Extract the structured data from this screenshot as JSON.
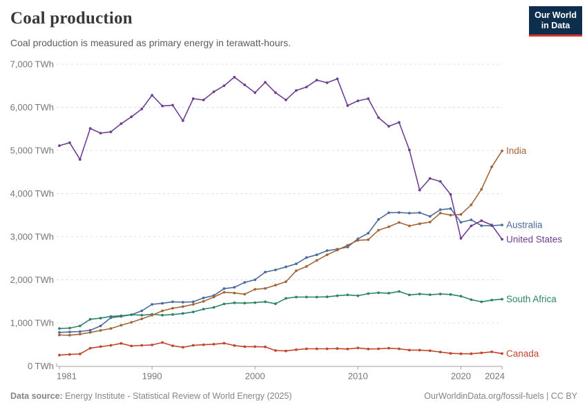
{
  "header": {
    "title": "Coal production",
    "subtitle": "Coal production is measured as primary energy in terawatt-hours.",
    "logo": {
      "line1": "Our World",
      "line2": "in Data",
      "bg_color": "#0e2e4e",
      "accent_color": "#d8352a"
    }
  },
  "chart_data": {
    "type": "line",
    "title": "Coal production",
    "subtitle": "Coal production is measured as primary energy in terawatt-hours.",
    "unit": "TWh",
    "ylim": [
      0,
      7000
    ],
    "ytick_step": 1000,
    "xticks": [
      1981,
      1990,
      2000,
      2010,
      2020,
      2024
    ],
    "grid": "horizontal-dashed",
    "legend_position": "right-end-labels",
    "grid_color": "#dcdcdc",
    "axis_color": "#a0a0a0",
    "tick_label_color": "#757575",
    "x": [
      1981,
      1982,
      1983,
      1984,
      1985,
      1986,
      1987,
      1988,
      1989,
      1990,
      1991,
      1992,
      1993,
      1994,
      1995,
      1996,
      1997,
      1998,
      1999,
      2000,
      2001,
      2002,
      2003,
      2004,
      2005,
      2006,
      2007,
      2008,
      2009,
      2010,
      2011,
      2012,
      2013,
      2014,
      2015,
      2016,
      2017,
      2018,
      2019,
      2020,
      2021,
      2022,
      2023,
      2024
    ],
    "series": [
      {
        "name": "Australia",
        "color": "#4c6a9c",
        "values": [
          780,
          790,
          800,
          830,
          930,
          1120,
          1150,
          1190,
          1280,
          1430,
          1455,
          1490,
          1480,
          1490,
          1580,
          1635,
          1795,
          1825,
          1940,
          2000,
          2180,
          2230,
          2300,
          2370,
          2515,
          2580,
          2675,
          2710,
          2760,
          2950,
          3080,
          3400,
          3555,
          3560,
          3545,
          3555,
          3470,
          3625,
          3650,
          3335,
          3390,
          3255,
          3255,
          3270
        ]
      },
      {
        "name": "South Africa",
        "color": "#2c8465",
        "values": [
          870,
          880,
          930,
          1085,
          1110,
          1150,
          1165,
          1190,
          1180,
          1200,
          1180,
          1195,
          1220,
          1255,
          1320,
          1360,
          1440,
          1465,
          1460,
          1470,
          1490,
          1445,
          1570,
          1600,
          1600,
          1600,
          1605,
          1630,
          1650,
          1630,
          1680,
          1700,
          1690,
          1730,
          1650,
          1670,
          1655,
          1670,
          1660,
          1620,
          1540,
          1490,
          1530,
          1550
        ]
      },
      {
        "name": "Canada",
        "color": "#c0452b",
        "values": [
          255,
          270,
          280,
          415,
          450,
          480,
          525,
          465,
          480,
          490,
          545,
          470,
          435,
          480,
          495,
          505,
          530,
          475,
          450,
          450,
          445,
          360,
          350,
          380,
          400,
          400,
          400,
          405,
          395,
          420,
          395,
          400,
          415,
          400,
          370,
          370,
          355,
          325,
          295,
          285,
          285,
          305,
          330,
          290
        ]
      },
      {
        "name": "India",
        "color": "#a2653a",
        "values": [
          720,
          715,
          740,
          780,
          825,
          870,
          945,
          1015,
          1095,
          1180,
          1280,
          1340,
          1380,
          1430,
          1500,
          1600,
          1710,
          1695,
          1665,
          1780,
          1800,
          1875,
          1955,
          2210,
          2310,
          2450,
          2580,
          2690,
          2800,
          2915,
          2930,
          3150,
          3230,
          3330,
          3250,
          3300,
          3340,
          3545,
          3500,
          3515,
          3740,
          4100,
          4620,
          4990
        ]
      },
      {
        "name": "United States",
        "color": "#6d3e91",
        "values": [
          5110,
          5180,
          4790,
          5510,
          5400,
          5430,
          5620,
          5780,
          5960,
          6280,
          6030,
          6050,
          5690,
          6200,
          6170,
          6360,
          6500,
          6700,
          6520,
          6340,
          6580,
          6340,
          6170,
          6390,
          6470,
          6630,
          6570,
          6660,
          6040,
          6150,
          6200,
          5760,
          5560,
          5650,
          5010,
          4080,
          4350,
          4280,
          3980,
          2960,
          3250,
          3370,
          3270,
          2940
        ]
      }
    ]
  },
  "footer": {
    "source_label": "Data source:",
    "source_text": " Energy Institute - Statistical Review of World Energy (2025)",
    "credit": "OurWorldinData.org/fossil-fuels | CC BY"
  }
}
